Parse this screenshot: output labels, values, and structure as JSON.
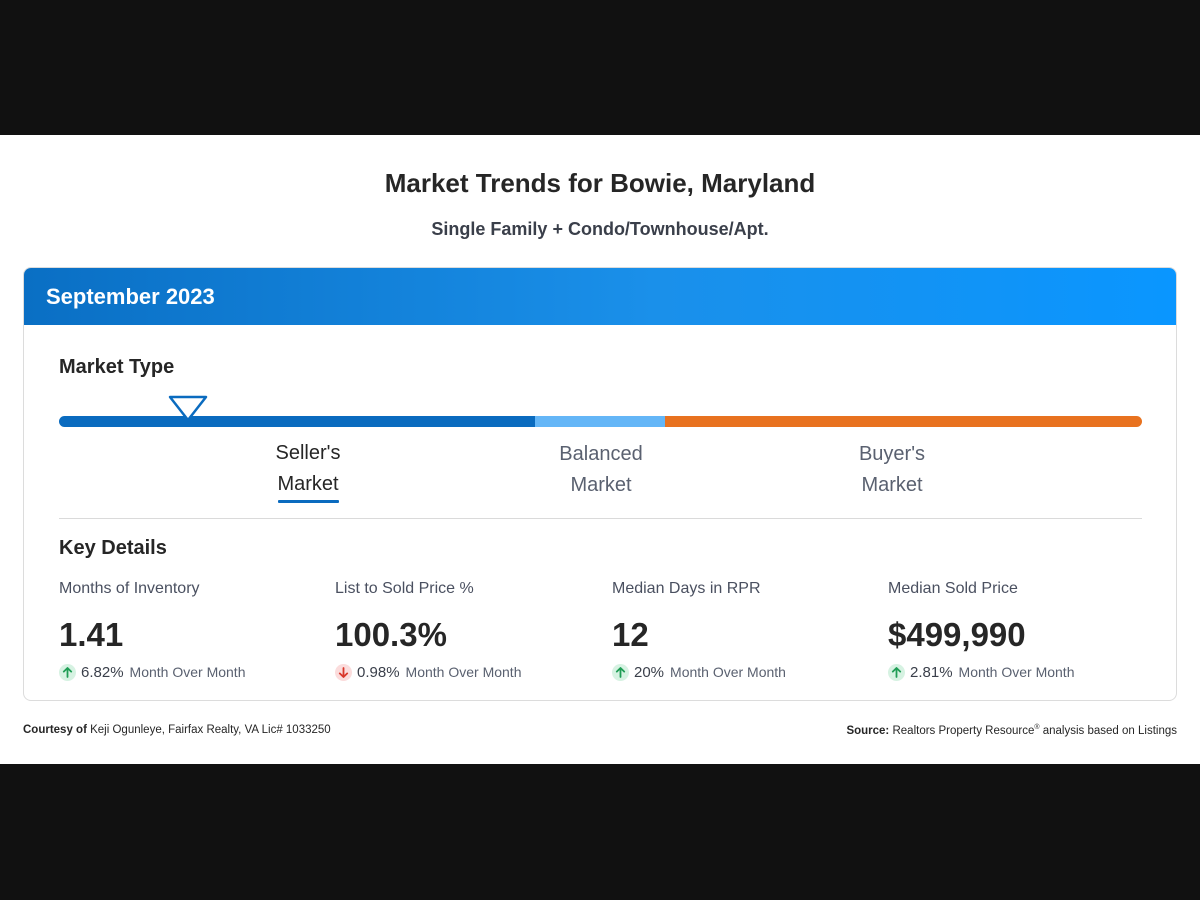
{
  "title": "Market Trends for Bowie, Maryland",
  "subtitle": "Single Family + Condo/Townhouse/Apt.",
  "card": {
    "period": "September 2023"
  },
  "market_type": {
    "label": "Market Type",
    "segments": [
      {
        "line1": "Seller's",
        "line2": "Market",
        "color": "#0a6bbf",
        "active": true
      },
      {
        "line1": "Balanced",
        "line2": "Market",
        "color": "#64b6f7",
        "active": false
      },
      {
        "line1": "Buyer's",
        "line2": "Market",
        "color": "#e8721f",
        "active": false
      }
    ],
    "marker_icon": "triangle-down-marker-icon",
    "marker_level": 0.12
  },
  "key_details": {
    "label": "Key Details",
    "stats": [
      {
        "label": "Months of Inventory",
        "value": "1.41",
        "direction": "up",
        "change": "6.82%",
        "period": "Month Over Month"
      },
      {
        "label": "List to Sold Price %",
        "value": "100.3%",
        "direction": "down",
        "change": "0.98%",
        "period": "Month Over Month"
      },
      {
        "label": "Median Days in RPR",
        "value": "12",
        "direction": "up",
        "change": "20%",
        "period": "Month Over Month"
      },
      {
        "label": "Median Sold Price",
        "value": "$499,990",
        "direction": "up",
        "change": "2.81%",
        "period": "Month Over Month"
      }
    ]
  },
  "footer": {
    "courtesy_label": "Courtesy of",
    "courtesy_text": "Keji Ogunleye, Fairfax Realty, VA Lic# 1033250",
    "source_label": "Source:",
    "source_text_1": "Realtors Property Resource",
    "source_reg": "®",
    "source_text_2": "analysis based on Listings"
  },
  "colors": {
    "header_blue": "#0a6fc4",
    "up_arrow": "#1f9d55",
    "down_arrow": "#d9372b"
  }
}
